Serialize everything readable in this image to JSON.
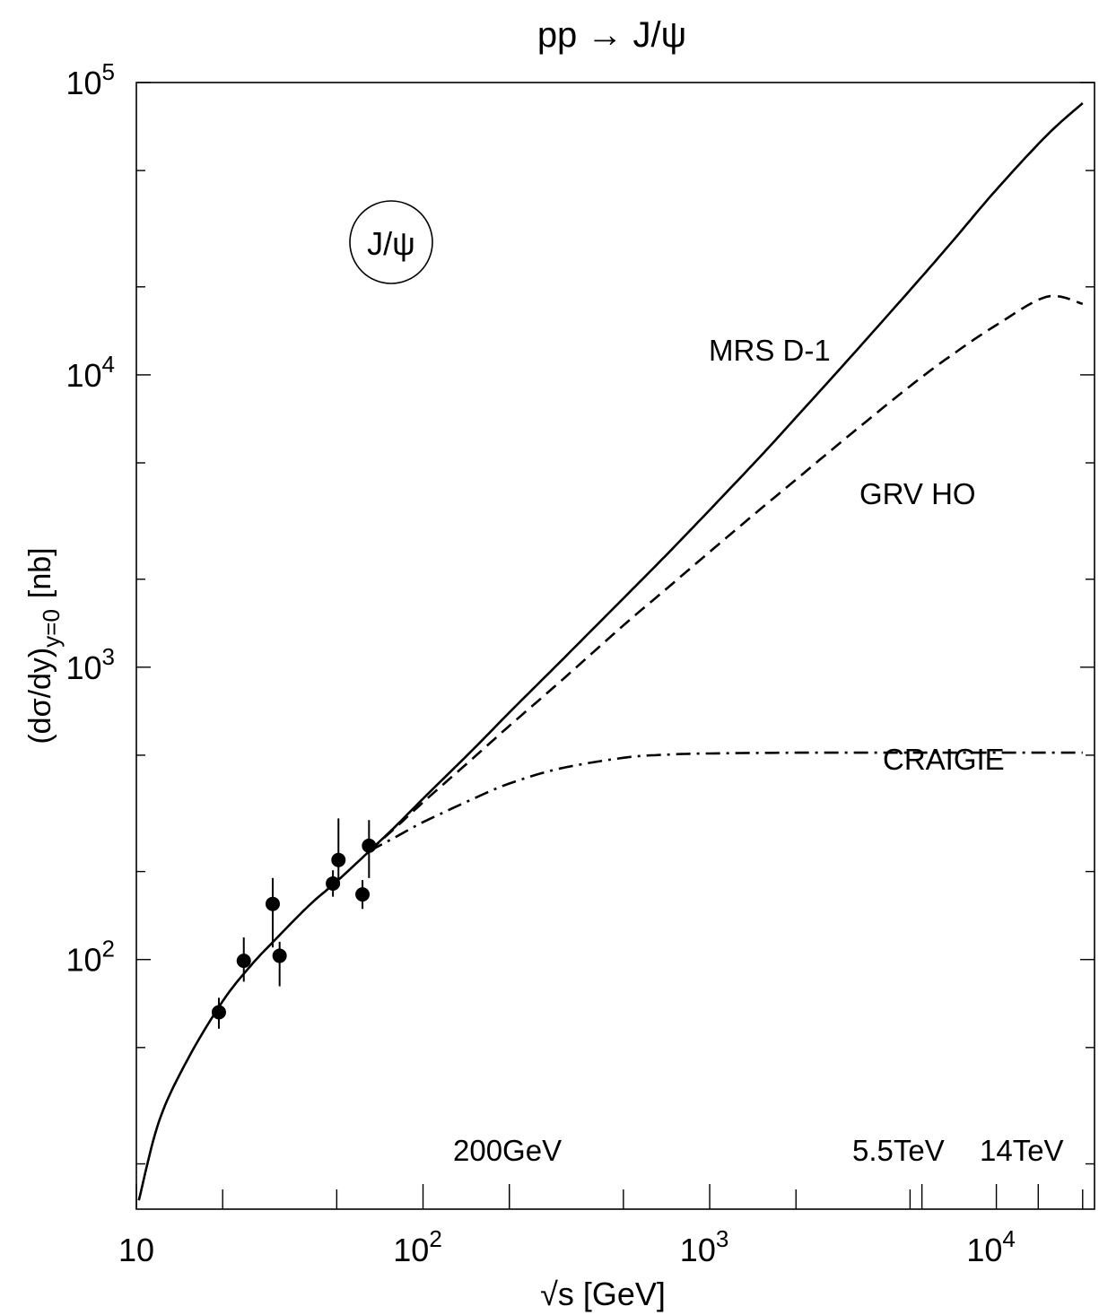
{
  "chart_data": {
    "type": "line",
    "title": "pp → J/ψ",
    "xlabel": "√s [GeV]",
    "ylabel": {
      "main": "(dσ/dy)",
      "sub": "y=0",
      "unit": "[nb]"
    },
    "x_scale": "log",
    "y_scale": "log",
    "xlim": [
      10,
      22000
    ],
    "ylim": [
      14,
      100000
    ],
    "x_ticks": [
      {
        "value": 10,
        "base": "10",
        "exp": ""
      },
      {
        "value": 100,
        "base": "10",
        "exp": "2"
      },
      {
        "value": 1000,
        "base": "10",
        "exp": "3"
      },
      {
        "value": 10000,
        "base": "10",
        "exp": "4"
      }
    ],
    "y_ticks": [
      {
        "value": 100,
        "base": "10",
        "exp": "2"
      },
      {
        "value": 1000,
        "base": "10",
        "exp": "3"
      },
      {
        "value": 10000,
        "base": "10",
        "exp": "4"
      },
      {
        "value": 100000,
        "base": "10",
        "exp": "5"
      }
    ],
    "badge": "J/ψ",
    "energy_marks": [
      {
        "label": "200GeV",
        "x": 200
      },
      {
        "label": "5.5TeV",
        "x": 5500
      },
      {
        "label": "14TeV",
        "x": 14000
      }
    ],
    "series": [
      {
        "name": "MRS D-1",
        "style": "solid",
        "x": [
          10.2,
          12,
          15,
          20,
          25,
          30,
          40,
          50,
          65,
          80,
          100,
          150,
          200,
          300,
          500,
          700,
          1000,
          1500,
          2000,
          3000,
          5000,
          7000,
          10000,
          15000,
          20000
        ],
        "y": [
          15,
          28,
          45,
          72,
          95,
          115,
          153,
          185,
          235,
          285,
          355,
          525,
          700,
          1040,
          1720,
          2400,
          3450,
          5250,
          7150,
          11100,
          19500,
          28500,
          43000,
          66000,
          85000
        ]
      },
      {
        "name": "GRV HO",
        "style": "dashed",
        "x": [
          65,
          80,
          100,
          150,
          200,
          300,
          500,
          700,
          1000,
          1500,
          2000,
          3000,
          5000,
          7000,
          10000,
          15000,
          20000
        ],
        "y": [
          235,
          282,
          345,
          490,
          630,
          890,
          1390,
          1840,
          2480,
          3470,
          4380,
          6100,
          9150,
          11700,
          14800,
          18500,
          17500
        ]
      },
      {
        "name": "CRAIGIE",
        "style": "dashdot",
        "x": [
          65,
          80,
          100,
          150,
          200,
          300,
          500,
          700,
          1000,
          2000,
          5000,
          10000,
          20000
        ],
        "y": [
          235,
          262,
          295,
          355,
          400,
          450,
          490,
          502,
          507,
          510,
          510,
          510,
          510
        ]
      }
    ],
    "data_points": {
      "x": [
        19.4,
        23.7,
        29.9,
        31.6,
        48.5,
        50.7,
        61.5,
        64.8
      ],
      "y": [
        66,
        99,
        155,
        103,
        182,
        219,
        167,
        245
      ],
      "yerr_low": [
        8,
        15,
        45,
        22,
        18,
        35,
        18,
        55
      ],
      "yerr_high": [
        8,
        20,
        35,
        12,
        20,
        85,
        20,
        55
      ]
    },
    "curve_labels": [
      {
        "series": "MRS D-1",
        "text": "MRS D-1"
      },
      {
        "series": "GRV HO",
        "text": "GRV HO"
      },
      {
        "series": "CRAIGIE",
        "text": "CRAIGIE"
      }
    ]
  }
}
